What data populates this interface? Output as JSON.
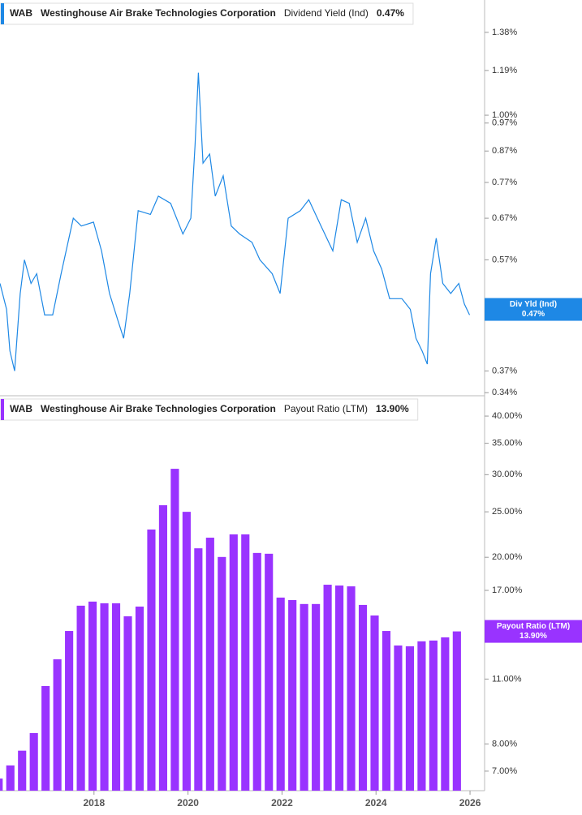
{
  "chart_data": [
    {
      "type": "line",
      "ticker": "WAB",
      "company": "Westinghouse Air Brake Technologies Corporation",
      "metric": "Dividend Yield (Ind)",
      "current_value": 0.47,
      "current_label": "0.47%",
      "flag_name": "Div Yld (Ind)",
      "color": "#1e88e5",
      "log_scale": true,
      "x": [
        2016.0,
        2016.14,
        2016.21,
        2016.31,
        2016.43,
        2016.52,
        2016.66,
        2016.78,
        2016.95,
        2017.12,
        2017.3,
        2017.56,
        2017.73,
        2017.99,
        2018.16,
        2018.33,
        2018.51,
        2018.63,
        2018.76,
        2018.94,
        2019.2,
        2019.37,
        2019.63,
        2019.89,
        2020.06,
        2020.15,
        2020.22,
        2020.32,
        2020.46,
        2020.58,
        2020.75,
        2020.92,
        2021.1,
        2021.36,
        2021.53,
        2021.79,
        2021.96,
        2022.13,
        2022.39,
        2022.57,
        2022.83,
        2023.08,
        2023.26,
        2023.43,
        2023.6,
        2023.78,
        2023.95,
        2024.12,
        2024.29,
        2024.55,
        2024.73,
        2024.85,
        2024.98,
        2025.09,
        2025.16,
        2025.28,
        2025.42,
        2025.59,
        2025.76,
        2025.88,
        2025.99
      ],
      "values": [
        0.52,
        0.47,
        0.4,
        0.37,
        0.5,
        0.57,
        0.52,
        0.54,
        0.46,
        0.46,
        0.54,
        0.67,
        0.65,
        0.66,
        0.59,
        0.5,
        0.45,
        0.42,
        0.5,
        0.69,
        0.68,
        0.73,
        0.71,
        0.63,
        0.67,
        0.89,
        1.18,
        0.83,
        0.86,
        0.73,
        0.79,
        0.65,
        0.63,
        0.61,
        0.57,
        0.54,
        0.5,
        0.67,
        0.69,
        0.72,
        0.65,
        0.59,
        0.72,
        0.71,
        0.61,
        0.67,
        0.59,
        0.55,
        0.49,
        0.49,
        0.47,
        0.42,
        0.4,
        0.38,
        0.54,
        0.62,
        0.52,
        0.5,
        0.52,
        0.48,
        0.46
      ],
      "xlim": [
        2016.0,
        2026.31
      ],
      "ylim": [
        0.336,
        1.565
      ],
      "yticks": [
        {
          "value": 1.38,
          "label": "1.38%"
        },
        {
          "value": 1.19,
          "label": "1.19%"
        },
        {
          "value": 1.0,
          "label": "1.00%"
        },
        {
          "value": 0.97,
          "label": "0.97%"
        },
        {
          "value": 0.87,
          "label": "0.87%"
        },
        {
          "value": 0.77,
          "label": "0.77%"
        },
        {
          "value": 0.67,
          "label": "0.67%"
        },
        {
          "value": 0.57,
          "label": "0.57%"
        },
        {
          "value": 0.37,
          "label": "0.37%"
        },
        {
          "value": 0.34,
          "label": "0.34%"
        }
      ]
    },
    {
      "type": "bar",
      "ticker": "WAB",
      "company": "Westinghouse Air Brake Technologies Corporation",
      "metric": "Payout Ratio (LTM)",
      "current_value": 13.9,
      "current_label": "13.90%",
      "flag_name": "Payout Ratio (LTM)",
      "color": "#9933ff",
      "log_scale": true,
      "x": [
        2015.97,
        2016.22,
        2016.47,
        2016.72,
        2016.97,
        2017.22,
        2017.47,
        2017.72,
        2017.97,
        2018.22,
        2018.47,
        2018.72,
        2018.97,
        2019.22,
        2019.47,
        2019.72,
        2019.97,
        2020.22,
        2020.47,
        2020.72,
        2020.97,
        2021.22,
        2021.47,
        2021.72,
        2021.97,
        2022.22,
        2022.47,
        2022.72,
        2022.97,
        2023.22,
        2023.47,
        2023.72,
        2023.97,
        2024.22,
        2024.47,
        2024.72,
        2024.97,
        2025.22,
        2025.47,
        2025.72
      ],
      "values": [
        6.75,
        7.2,
        7.74,
        8.44,
        10.63,
        12.12,
        13.93,
        15.77,
        16.09,
        15.96,
        15.96,
        14.97,
        15.7,
        22.92,
        25.82,
        30.88,
        25.0,
        20.9,
        22.02,
        20.03,
        22.38,
        22.38,
        20.43,
        20.35,
        16.41,
        16.21,
        15.9,
        15.9,
        17.48,
        17.41,
        17.34,
        15.83,
        15.03,
        13.93,
        12.97,
        12.92,
        13.24,
        13.29,
        13.5,
        13.9
      ],
      "xlim": [
        2016.0,
        2026.31
      ],
      "ylim": [
        6.36,
        43.5
      ],
      "xticks": [
        2018,
        2020,
        2022,
        2024,
        2026
      ],
      "yticks": [
        {
          "value": 40,
          "label": "40.00%"
        },
        {
          "value": 35,
          "label": "35.00%"
        },
        {
          "value": 30,
          "label": "30.00%"
        },
        {
          "value": 25,
          "label": "25.00%"
        },
        {
          "value": 20,
          "label": "20.00%"
        },
        {
          "value": 17,
          "label": "17.00%"
        },
        {
          "value": 11,
          "label": "11.00%"
        },
        {
          "value": 8,
          "label": "8.00%"
        },
        {
          "value": 7,
          "label": "7.00%"
        }
      ]
    }
  ]
}
